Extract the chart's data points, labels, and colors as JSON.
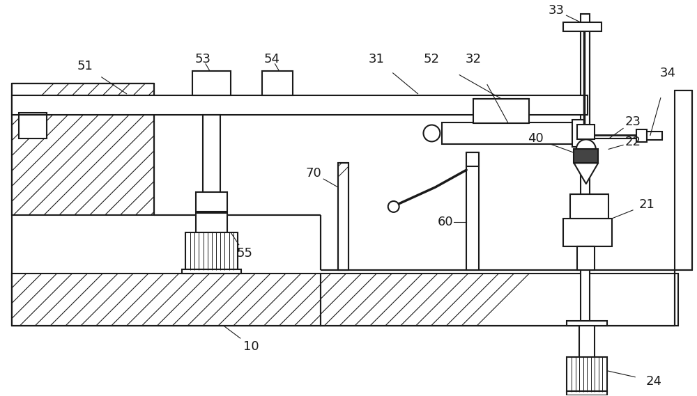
{
  "bg_color": "#ffffff",
  "lc": "#1a1a1a",
  "lw": 1.5,
  "tlw": 0.8
}
